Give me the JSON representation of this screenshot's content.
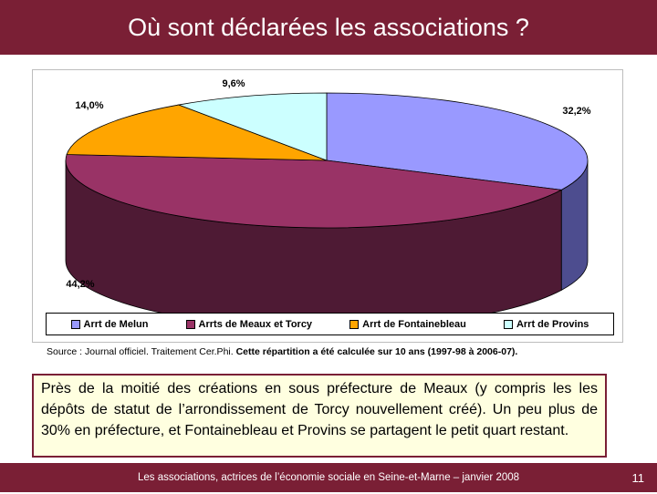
{
  "header": {
    "title": "Où sont déclarées les associations ?"
  },
  "chart_data": {
    "type": "pie",
    "categories": [
      "Arrt de Melun",
      "Arrts de Meaux et Torcy",
      "Arrt de Fontainebleau",
      "Arrt de Provins"
    ],
    "values": [
      32.2,
      44.2,
      14.0,
      9.6
    ],
    "labels": [
      "32,2%",
      "44,2%",
      "14,0%",
      "9,6%"
    ],
    "colors": [
      "#9999ff",
      "#993366",
      "#ffa500",
      "#ccffff"
    ],
    "side_colors": [
      "#4d4d8f",
      "#4e1a34",
      "#b8770f",
      "#9ec6c6"
    ],
    "legend_position": "bottom",
    "three_d": true
  },
  "source": {
    "plain": "Source : Journal officiel. Traitement Cer.Phi.",
    "bold": "Cette répartition a été calculée sur 10 ans (1997-98 à 2006-07)."
  },
  "summary": "Près de la moitié des créations en sous préfecture de Meaux (y compris les les dépôts de statut de l’arrondissement de Torcy nouvellement créé). Un peu plus de 30% en préfecture, et Fontainebleau et Provins se partagent le petit quart restant.",
  "footer": {
    "text": "Les associations, actrices de l’économie sociale en Seine-et-Marne – janvier 2008",
    "page": "11"
  }
}
